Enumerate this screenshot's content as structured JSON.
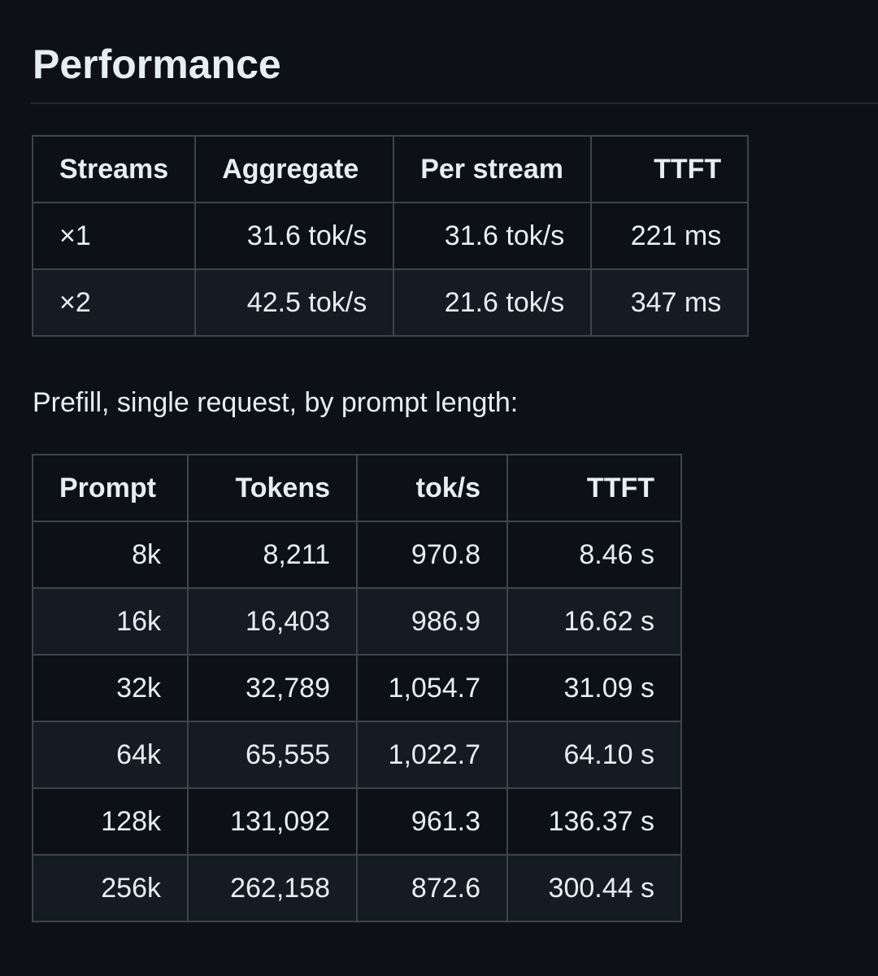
{
  "section": {
    "title": "Performance"
  },
  "streams_table": {
    "headers": [
      "Streams",
      "Aggregate",
      "Per stream",
      "TTFT"
    ],
    "rows": [
      [
        "×1",
        "31.6 tok/s",
        "31.6 tok/s",
        "221 ms"
      ],
      [
        "×2",
        "42.5 tok/s",
        "21.6 tok/s",
        "347 ms"
      ]
    ]
  },
  "prefill": {
    "caption": "Prefill, single request, by prompt length:",
    "headers": [
      "Prompt",
      "Tokens",
      "tok/s",
      "TTFT"
    ],
    "rows": [
      [
        "8k",
        "8,211",
        "970.8",
        "8.46 s"
      ],
      [
        "16k",
        "16,403",
        "986.9",
        "16.62 s"
      ],
      [
        "32k",
        "32,789",
        "1,054.7",
        "31.09 s"
      ],
      [
        "64k",
        "65,555",
        "1,022.7",
        "64.10 s"
      ],
      [
        "128k",
        "131,092",
        "961.3",
        "136.37 s"
      ],
      [
        "256k",
        "262,158",
        "872.6",
        "300.44 s"
      ]
    ]
  }
}
